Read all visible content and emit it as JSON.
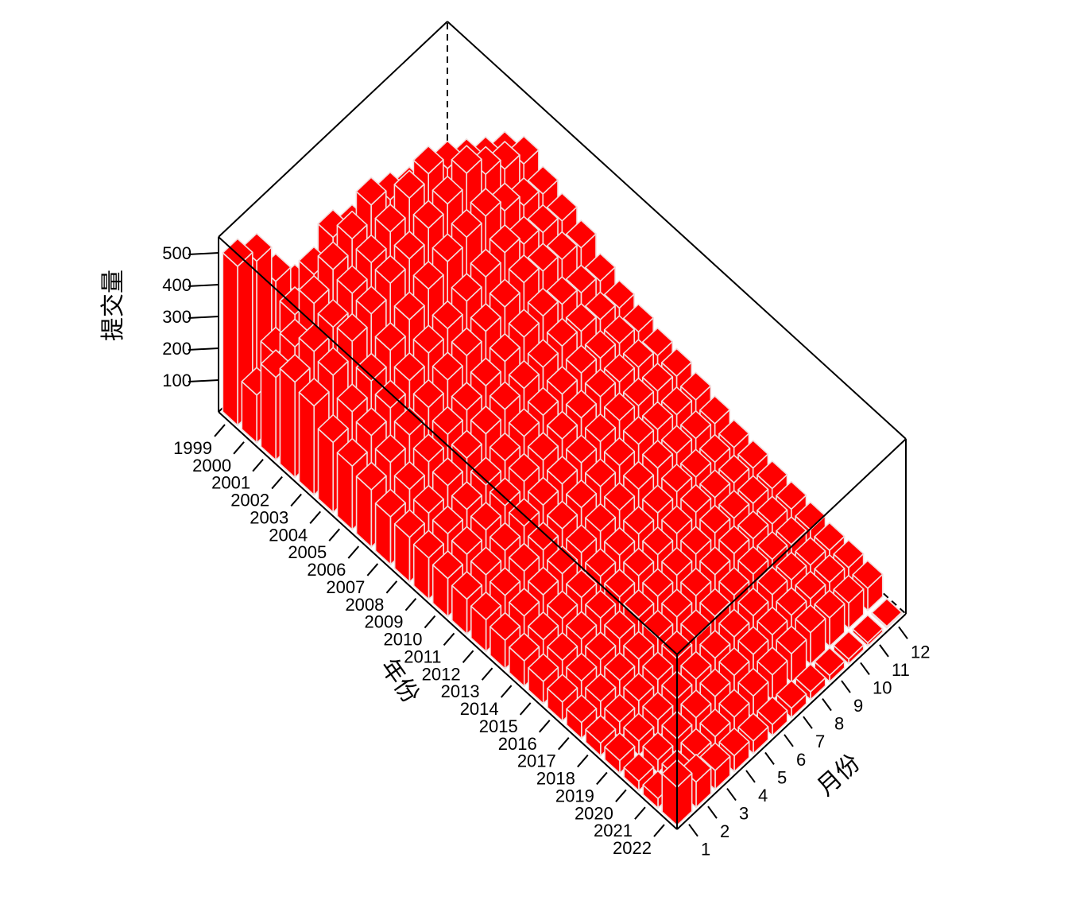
{
  "colors": {
    "bar_fill": "#ff0000",
    "bar_edge": "#f2dede",
    "box_line": "#000000"
  },
  "chart_data": {
    "type": "bar3d",
    "x_label": "年份",
    "y_label": "月份",
    "z_label": "提交量",
    "years": [
      "1999",
      "2000",
      "2001",
      "2002",
      "2003",
      "2004",
      "2005",
      "2006",
      "2007",
      "2008",
      "2009",
      "2010",
      "2011",
      "2012",
      "2013",
      "2014",
      "2015",
      "2016",
      "2017",
      "2018",
      "2019",
      "2020",
      "2021",
      "2022"
    ],
    "months": [
      "1",
      "2",
      "3",
      "4",
      "5",
      "6",
      "7",
      "8",
      "9",
      "10",
      "11",
      "12"
    ],
    "z_ticks": [
      "100",
      "200",
      "300",
      "400",
      "500"
    ],
    "z_range": [
      0,
      550
    ],
    "grid": false,
    "values_by_year": [
      [
        500,
        460,
        340,
        250,
        180,
        120,
        90,
        60,
        40,
        25,
        15,
        10
      ],
      [
        150,
        220,
        290,
        360,
        420,
        380,
        330,
        300,
        260,
        210,
        180,
        160
      ],
      [
        260,
        300,
        380,
        430,
        470,
        520,
        480,
        440,
        400,
        350,
        310,
        280
      ],
      [
        300,
        340,
        360,
        410,
        450,
        490,
        540,
        560,
        520,
        470,
        420,
        380
      ],
      [
        280,
        320,
        370,
        400,
        440,
        460,
        500,
        520,
        560,
        500,
        460,
        420
      ],
      [
        220,
        260,
        300,
        340,
        380,
        420,
        450,
        470,
        480,
        440,
        400,
        380
      ],
      [
        200,
        240,
        270,
        300,
        330,
        350,
        380,
        400,
        420,
        390,
        370,
        350
      ],
      [
        180,
        210,
        240,
        270,
        300,
        320,
        340,
        360,
        380,
        360,
        340,
        320
      ],
      [
        150,
        180,
        210,
        240,
        260,
        280,
        300,
        320,
        330,
        310,
        290,
        270
      ],
      [
        140,
        160,
        190,
        220,
        240,
        260,
        270,
        280,
        290,
        280,
        260,
        240
      ],
      [
        130,
        150,
        170,
        190,
        210,
        230,
        240,
        250,
        260,
        250,
        240,
        220
      ],
      [
        120,
        140,
        160,
        180,
        200,
        210,
        220,
        230,
        240,
        230,
        220,
        200
      ],
      [
        110,
        130,
        150,
        170,
        180,
        190,
        200,
        210,
        220,
        210,
        200,
        190
      ],
      [
        100,
        120,
        140,
        150,
        160,
        170,
        180,
        190,
        200,
        190,
        180,
        170
      ],
      [
        90,
        110,
        120,
        130,
        140,
        150,
        160,
        170,
        180,
        170,
        160,
        150
      ],
      [
        80,
        90,
        100,
        110,
        120,
        130,
        140,
        150,
        160,
        150,
        140,
        130
      ],
      [
        70,
        80,
        90,
        100,
        110,
        120,
        130,
        140,
        150,
        140,
        130,
        120
      ],
      [
        60,
        70,
        80,
        90,
        100,
        110,
        120,
        130,
        140,
        130,
        120,
        110
      ],
      [
        50,
        60,
        70,
        80,
        90,
        100,
        110,
        120,
        130,
        120,
        110,
        100
      ],
      [
        40,
        50,
        60,
        70,
        80,
        90,
        100,
        110,
        120,
        110,
        100,
        90
      ],
      [
        40,
        45,
        55,
        65,
        70,
        80,
        90,
        100,
        110,
        100,
        90,
        80
      ],
      [
        30,
        40,
        50,
        60,
        70,
        80,
        90,
        95,
        100,
        95,
        90,
        80
      ],
      [
        30,
        40,
        50,
        55,
        60,
        70,
        80,
        90,
        100,
        90,
        80,
        70
      ],
      [
        120,
        80,
        60,
        50,
        40,
        35,
        30,
        25,
        20,
        15,
        10,
        5
      ]
    ]
  }
}
